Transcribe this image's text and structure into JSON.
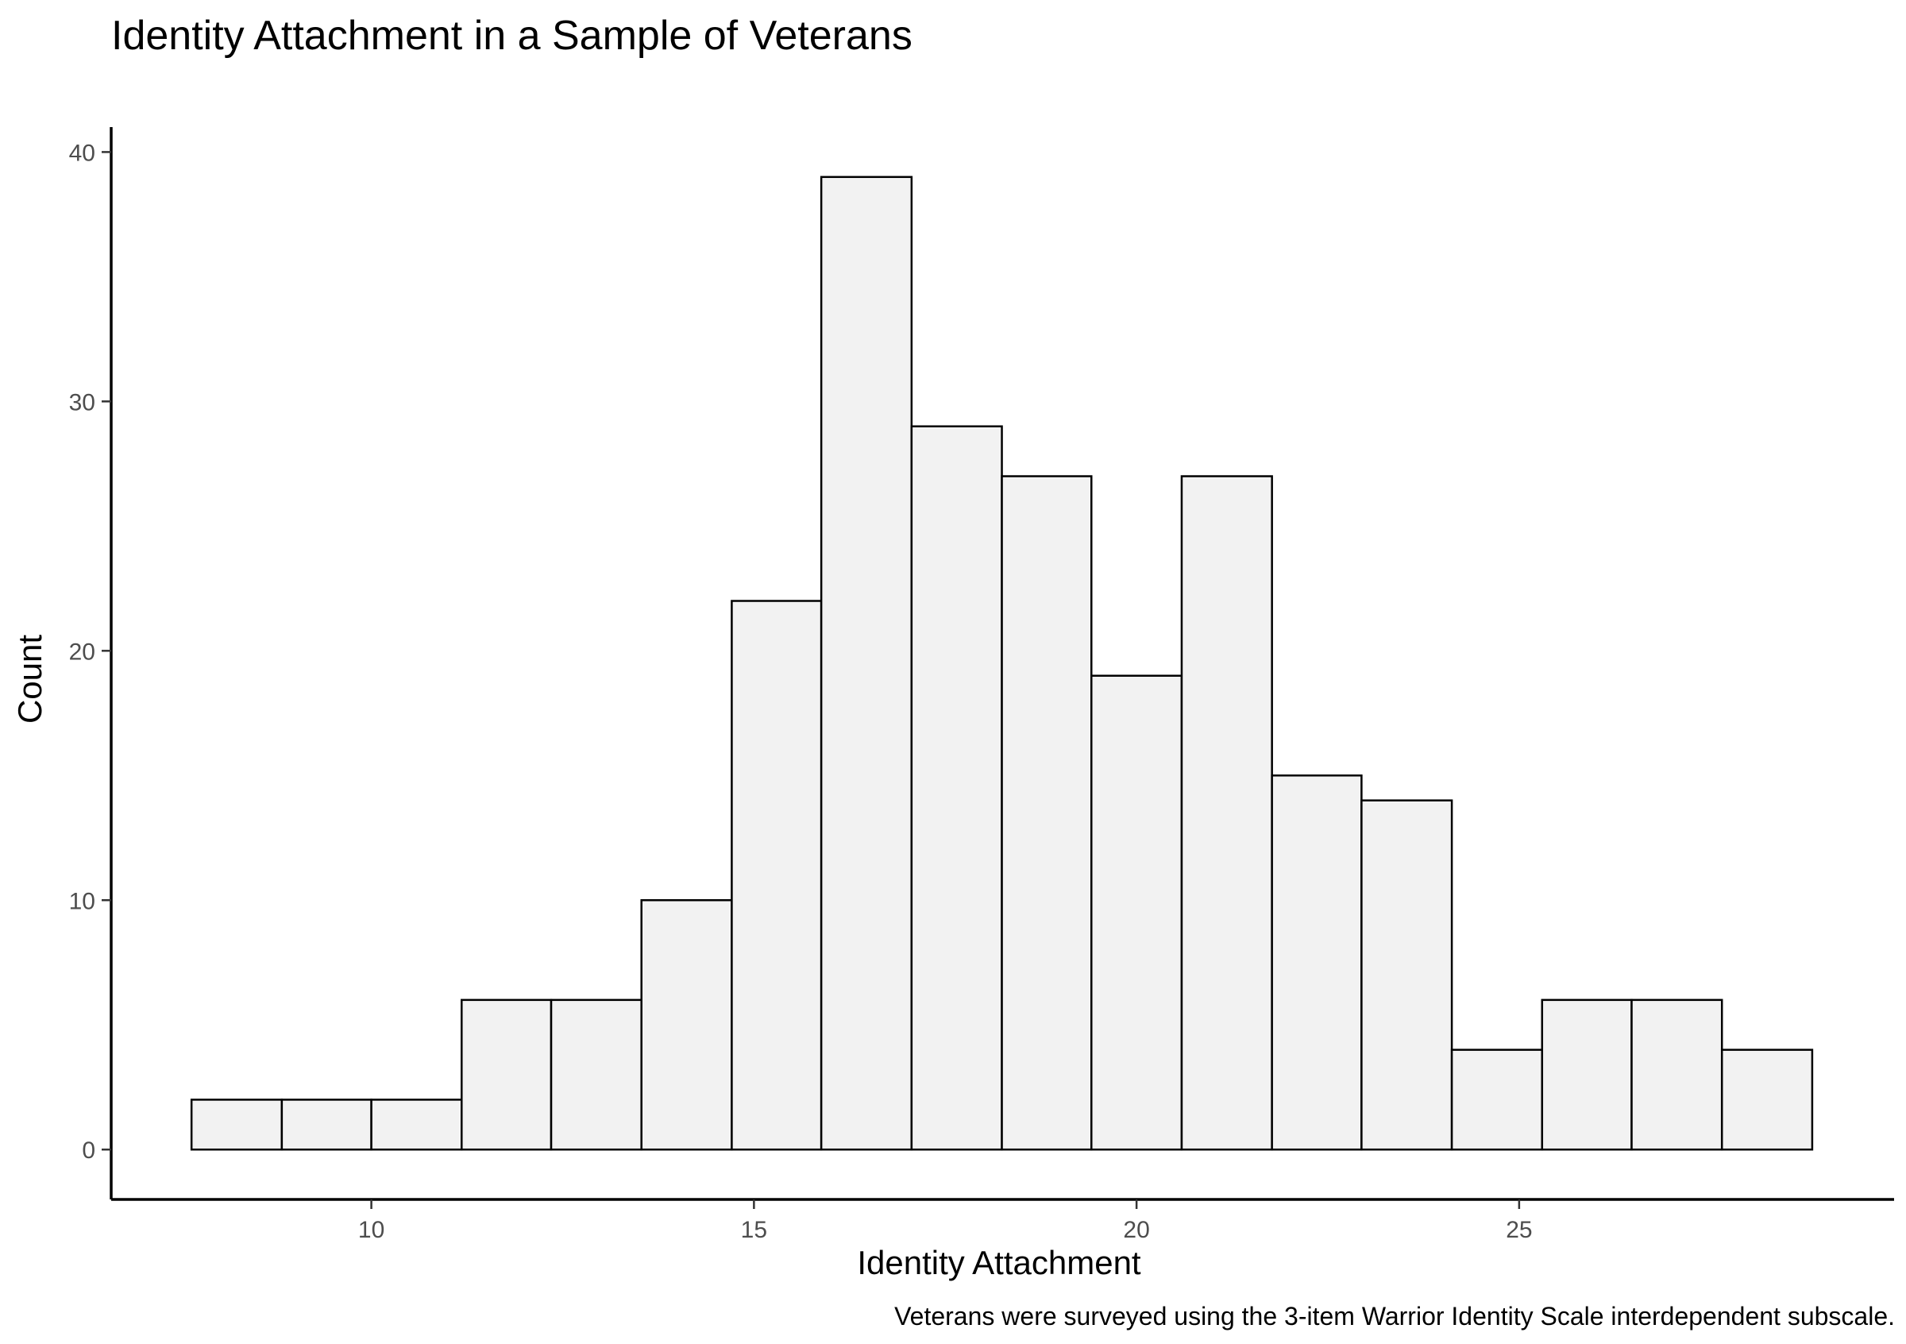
{
  "chart_data": {
    "type": "bar",
    "title": "Identity Attachment in a Sample of Veterans",
    "xlabel": "Identity Attachment",
    "ylabel": "Count",
    "caption": "Veterans were surveyed using the 3-item Warrior Identity Scale interdependent subscale.",
    "bins": [
      {
        "x0": 7.65,
        "x1": 8.83,
        "count": 2
      },
      {
        "x0": 8.83,
        "x1": 10.0,
        "count": 2
      },
      {
        "x0": 10.0,
        "x1": 11.18,
        "count": 2
      },
      {
        "x0": 11.18,
        "x1": 12.35,
        "count": 6
      },
      {
        "x0": 12.35,
        "x1": 13.53,
        "count": 6
      },
      {
        "x0": 13.53,
        "x1": 14.71,
        "count": 10
      },
      {
        "x0": 14.71,
        "x1": 15.88,
        "count": 22
      },
      {
        "x0": 15.88,
        "x1": 17.06,
        "count": 39
      },
      {
        "x0": 17.06,
        "x1": 18.24,
        "count": 29
      },
      {
        "x0": 18.24,
        "x1": 19.41,
        "count": 27
      },
      {
        "x0": 19.41,
        "x1": 20.59,
        "count": 19
      },
      {
        "x0": 20.59,
        "x1": 21.77,
        "count": 27
      },
      {
        "x0": 21.77,
        "x1": 22.94,
        "count": 15
      },
      {
        "x0": 22.94,
        "x1": 24.12,
        "count": 14
      },
      {
        "x0": 24.12,
        "x1": 25.3,
        "count": 4
      },
      {
        "x0": 25.3,
        "x1": 26.47,
        "count": 6
      },
      {
        "x0": 26.47,
        "x1": 27.65,
        "count": 6
      },
      {
        "x0": 27.65,
        "x1": 28.83,
        "count": 4
      }
    ],
    "xlim": [
      6.6,
      29.9
    ],
    "ylim": [
      -2,
      41
    ],
    "x_ticks": [
      10,
      15,
      20,
      25
    ],
    "y_ticks": [
      0,
      10,
      20,
      30,
      40
    ],
    "grid": false,
    "bar_fill": "#f2f2f2",
    "bar_stroke": "#000000"
  }
}
